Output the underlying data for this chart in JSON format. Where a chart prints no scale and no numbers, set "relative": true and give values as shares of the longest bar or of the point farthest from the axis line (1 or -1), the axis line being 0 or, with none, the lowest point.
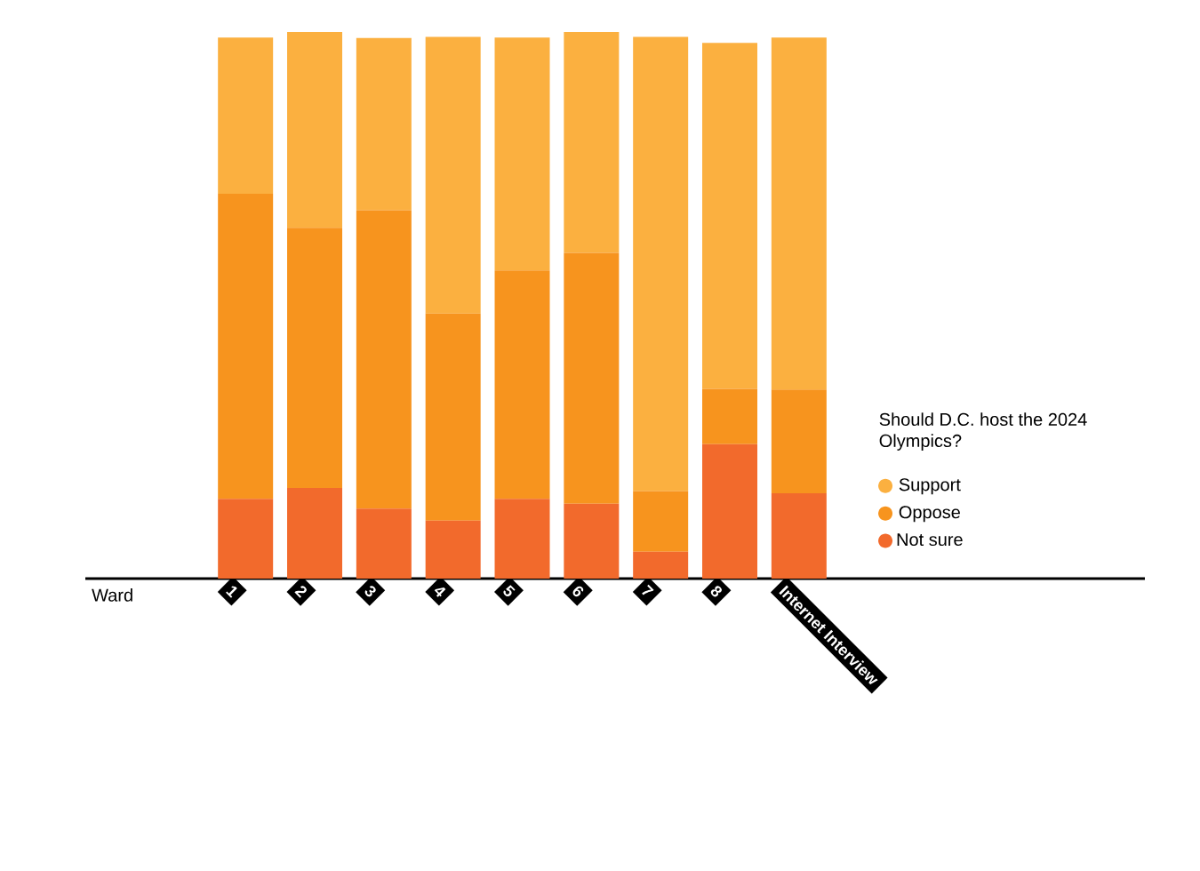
{
  "chart_data": {
    "type": "bar",
    "stacked": true,
    "relative": true,
    "xlabel": "Ward",
    "legend_title": "Should D.C. host the 2024 Olympics?",
    "legend": "right",
    "categories": [
      "1",
      "2",
      "3",
      "4",
      "5",
      "6",
      "7",
      "8",
      "Internet Interview"
    ],
    "series": [
      {
        "name": "Not sure",
        "color": "#f26a2c",
        "values": [
          0.146,
          0.166,
          0.128,
          0.106,
          0.146,
          0.137,
          0.049,
          0.246,
          0.156
        ]
      },
      {
        "name": "Oppose",
        "color": "#f7941e",
        "values": [
          0.558,
          0.476,
          0.546,
          0.379,
          0.418,
          0.459,
          0.111,
          0.101,
          0.19
        ]
      },
      {
        "name": "Support",
        "color": "#fbb040",
        "values": [
          0.286,
          0.358,
          0.315,
          0.506,
          0.426,
          0.404,
          0.831,
          0.633,
          0.644
        ]
      }
    ]
  }
}
